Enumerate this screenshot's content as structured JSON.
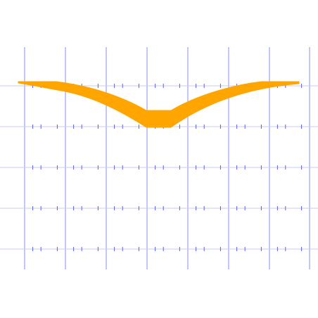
{
  "title": "",
  "colors": {
    "background": "#ffffff",
    "grid_vertical": "#8a8ef5",
    "grid_horizontal": "#c9cbf7",
    "ticks": "#5c5fe0",
    "band": "#ffa500"
  },
  "shape": {
    "type": "filled-band",
    "description_visible_text": ""
  }
}
